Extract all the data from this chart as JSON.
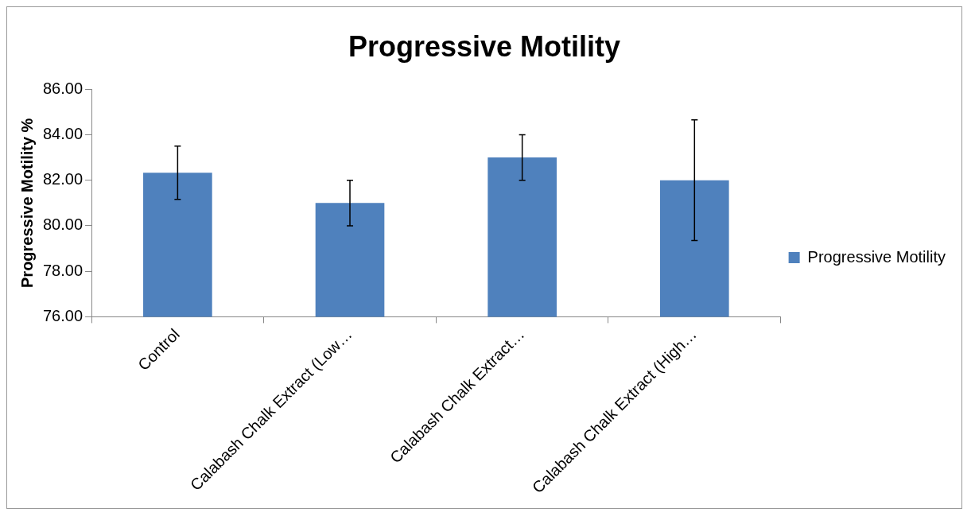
{
  "chart_data": {
    "type": "bar",
    "title": "Progressive Motility",
    "ylabel": "Progressive Motility %",
    "categories": [
      "Control",
      "Calabash Chalk Extract (Low…",
      "Calabash Chalk Extract…",
      "Calabash Chalk Extract (High…"
    ],
    "series": [
      {
        "name": "Progressive Motility",
        "color": "#4f81bd",
        "values": [
          82.33,
          81.0,
          83.0,
          82.0
        ],
        "errors": [
          1.17,
          1.0,
          1.0,
          2.65
        ]
      }
    ],
    "ylim": [
      76,
      86
    ],
    "yticks": [
      {
        "value": 76,
        "label": "76.00"
      },
      {
        "value": 78,
        "label": "78.00"
      },
      {
        "value": 80,
        "label": "80.00"
      },
      {
        "value": 82,
        "label": "82.00"
      },
      {
        "value": 84,
        "label": "84.00"
      },
      {
        "value": 86,
        "label": "86.00"
      }
    ],
    "grid": false,
    "legend": "right"
  }
}
